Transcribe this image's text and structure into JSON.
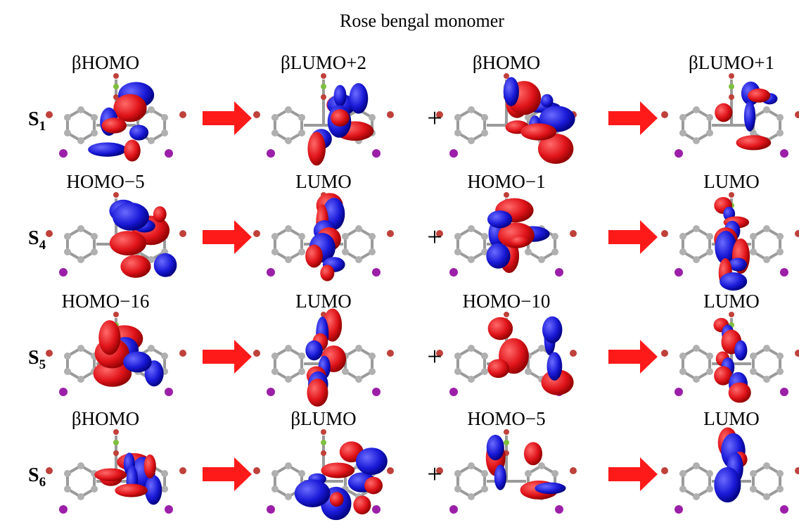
{
  "title": "Rose bengal monomer",
  "rows": [
    {
      "state": "S",
      "subscript": "1",
      "plus": "+",
      "orbitals": [
        "βHOMO",
        "βLUMO+2",
        "βHOMO",
        "βLUMO+1"
      ]
    },
    {
      "state": "S",
      "subscript": "4",
      "plus": "+",
      "orbitals": [
        "HOMO−5",
        "LUMO",
        "HOMO−1",
        "LUMO"
      ]
    },
    {
      "state": "S",
      "subscript": "5",
      "plus": "+",
      "orbitals": [
        "HOMO−16",
        "LUMO",
        "HOMO−10",
        "LUMO"
      ]
    },
    {
      "state": "S",
      "subscript": "6",
      "plus": "+",
      "orbitals": [
        "βHOMO",
        "βLUMO",
        "HOMO−5",
        "LUMO"
      ]
    }
  ]
}
